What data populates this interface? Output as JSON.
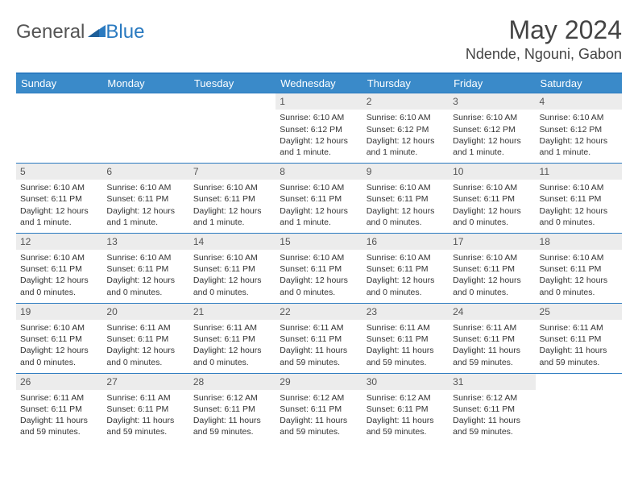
{
  "logo": {
    "text1": "General",
    "text2": "Blue"
  },
  "title": "May 2024",
  "location": "Ndende, Ngouni, Gabon",
  "colors": {
    "header_bg": "#3a8ac9",
    "header_border": "#2a7ac0",
    "daynum_band": "#ececec",
    "text": "#333333",
    "logo_gray": "#555555",
    "logo_blue": "#2a7ac0",
    "bg": "#ffffff"
  },
  "fonts": {
    "base_family": "Arial",
    "title_size_pt": 24,
    "header_size_pt": 10,
    "cell_size_pt": 8
  },
  "day_headers": [
    "Sunday",
    "Monday",
    "Tuesday",
    "Wednesday",
    "Thursday",
    "Friday",
    "Saturday"
  ],
  "weeks": [
    [
      {
        "n": "",
        "sr": "",
        "ss": "",
        "dl": ""
      },
      {
        "n": "",
        "sr": "",
        "ss": "",
        "dl": ""
      },
      {
        "n": "",
        "sr": "",
        "ss": "",
        "dl": ""
      },
      {
        "n": "1",
        "sr": "Sunrise: 6:10 AM",
        "ss": "Sunset: 6:12 PM",
        "dl": "Daylight: 12 hours and 1 minute."
      },
      {
        "n": "2",
        "sr": "Sunrise: 6:10 AM",
        "ss": "Sunset: 6:12 PM",
        "dl": "Daylight: 12 hours and 1 minute."
      },
      {
        "n": "3",
        "sr": "Sunrise: 6:10 AM",
        "ss": "Sunset: 6:12 PM",
        "dl": "Daylight: 12 hours and 1 minute."
      },
      {
        "n": "4",
        "sr": "Sunrise: 6:10 AM",
        "ss": "Sunset: 6:12 PM",
        "dl": "Daylight: 12 hours and 1 minute."
      }
    ],
    [
      {
        "n": "5",
        "sr": "Sunrise: 6:10 AM",
        "ss": "Sunset: 6:11 PM",
        "dl": "Daylight: 12 hours and 1 minute."
      },
      {
        "n": "6",
        "sr": "Sunrise: 6:10 AM",
        "ss": "Sunset: 6:11 PM",
        "dl": "Daylight: 12 hours and 1 minute."
      },
      {
        "n": "7",
        "sr": "Sunrise: 6:10 AM",
        "ss": "Sunset: 6:11 PM",
        "dl": "Daylight: 12 hours and 1 minute."
      },
      {
        "n": "8",
        "sr": "Sunrise: 6:10 AM",
        "ss": "Sunset: 6:11 PM",
        "dl": "Daylight: 12 hours and 1 minute."
      },
      {
        "n": "9",
        "sr": "Sunrise: 6:10 AM",
        "ss": "Sunset: 6:11 PM",
        "dl": "Daylight: 12 hours and 0 minutes."
      },
      {
        "n": "10",
        "sr": "Sunrise: 6:10 AM",
        "ss": "Sunset: 6:11 PM",
        "dl": "Daylight: 12 hours and 0 minutes."
      },
      {
        "n": "11",
        "sr": "Sunrise: 6:10 AM",
        "ss": "Sunset: 6:11 PM",
        "dl": "Daylight: 12 hours and 0 minutes."
      }
    ],
    [
      {
        "n": "12",
        "sr": "Sunrise: 6:10 AM",
        "ss": "Sunset: 6:11 PM",
        "dl": "Daylight: 12 hours and 0 minutes."
      },
      {
        "n": "13",
        "sr": "Sunrise: 6:10 AM",
        "ss": "Sunset: 6:11 PM",
        "dl": "Daylight: 12 hours and 0 minutes."
      },
      {
        "n": "14",
        "sr": "Sunrise: 6:10 AM",
        "ss": "Sunset: 6:11 PM",
        "dl": "Daylight: 12 hours and 0 minutes."
      },
      {
        "n": "15",
        "sr": "Sunrise: 6:10 AM",
        "ss": "Sunset: 6:11 PM",
        "dl": "Daylight: 12 hours and 0 minutes."
      },
      {
        "n": "16",
        "sr": "Sunrise: 6:10 AM",
        "ss": "Sunset: 6:11 PM",
        "dl": "Daylight: 12 hours and 0 minutes."
      },
      {
        "n": "17",
        "sr": "Sunrise: 6:10 AM",
        "ss": "Sunset: 6:11 PM",
        "dl": "Daylight: 12 hours and 0 minutes."
      },
      {
        "n": "18",
        "sr": "Sunrise: 6:10 AM",
        "ss": "Sunset: 6:11 PM",
        "dl": "Daylight: 12 hours and 0 minutes."
      }
    ],
    [
      {
        "n": "19",
        "sr": "Sunrise: 6:10 AM",
        "ss": "Sunset: 6:11 PM",
        "dl": "Daylight: 12 hours and 0 minutes."
      },
      {
        "n": "20",
        "sr": "Sunrise: 6:11 AM",
        "ss": "Sunset: 6:11 PM",
        "dl": "Daylight: 12 hours and 0 minutes."
      },
      {
        "n": "21",
        "sr": "Sunrise: 6:11 AM",
        "ss": "Sunset: 6:11 PM",
        "dl": "Daylight: 12 hours and 0 minutes."
      },
      {
        "n": "22",
        "sr": "Sunrise: 6:11 AM",
        "ss": "Sunset: 6:11 PM",
        "dl": "Daylight: 11 hours and 59 minutes."
      },
      {
        "n": "23",
        "sr": "Sunrise: 6:11 AM",
        "ss": "Sunset: 6:11 PM",
        "dl": "Daylight: 11 hours and 59 minutes."
      },
      {
        "n": "24",
        "sr": "Sunrise: 6:11 AM",
        "ss": "Sunset: 6:11 PM",
        "dl": "Daylight: 11 hours and 59 minutes."
      },
      {
        "n": "25",
        "sr": "Sunrise: 6:11 AM",
        "ss": "Sunset: 6:11 PM",
        "dl": "Daylight: 11 hours and 59 minutes."
      }
    ],
    [
      {
        "n": "26",
        "sr": "Sunrise: 6:11 AM",
        "ss": "Sunset: 6:11 PM",
        "dl": "Daylight: 11 hours and 59 minutes."
      },
      {
        "n": "27",
        "sr": "Sunrise: 6:11 AM",
        "ss": "Sunset: 6:11 PM",
        "dl": "Daylight: 11 hours and 59 minutes."
      },
      {
        "n": "28",
        "sr": "Sunrise: 6:12 AM",
        "ss": "Sunset: 6:11 PM",
        "dl": "Daylight: 11 hours and 59 minutes."
      },
      {
        "n": "29",
        "sr": "Sunrise: 6:12 AM",
        "ss": "Sunset: 6:11 PM",
        "dl": "Daylight: 11 hours and 59 minutes."
      },
      {
        "n": "30",
        "sr": "Sunrise: 6:12 AM",
        "ss": "Sunset: 6:11 PM",
        "dl": "Daylight: 11 hours and 59 minutes."
      },
      {
        "n": "31",
        "sr": "Sunrise: 6:12 AM",
        "ss": "Sunset: 6:11 PM",
        "dl": "Daylight: 11 hours and 59 minutes."
      },
      {
        "n": "",
        "sr": "",
        "ss": "",
        "dl": ""
      }
    ]
  ]
}
